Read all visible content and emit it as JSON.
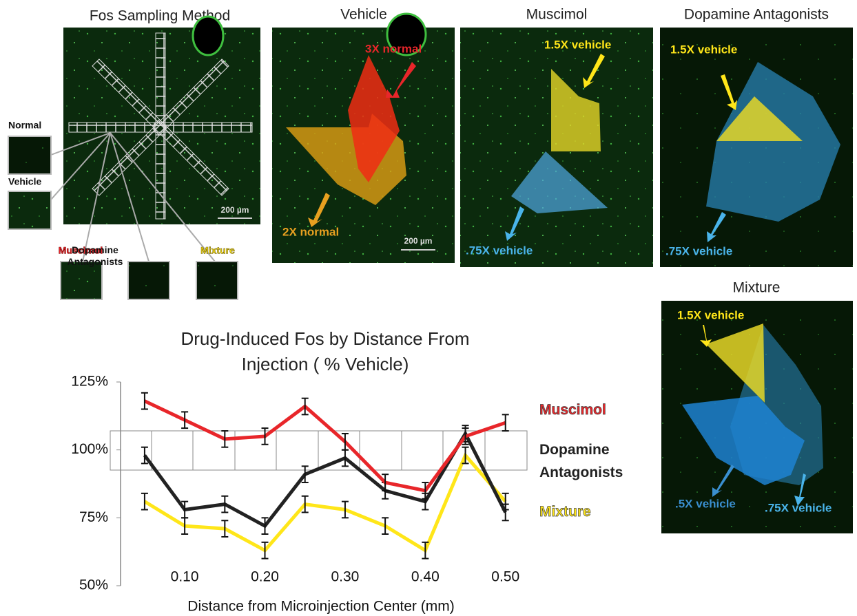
{
  "sampling": {
    "title": "Fos Sampling Method",
    "scale": "200 µm",
    "insets": [
      "Normal",
      "Vehicle",
      "Muscimol",
      "Dopamine Antagonists",
      "Mixture"
    ]
  },
  "vehicle": {
    "title": "Vehicle",
    "labels": [
      "3X normal",
      "2X normal"
    ],
    "scale": "200 µm"
  },
  "muscimol": {
    "title": "Muscimol",
    "labels": [
      "1.5X vehicle",
      ".75X vehicle"
    ]
  },
  "dopamine": {
    "title": "Dopamine Antagonists",
    "labels": [
      "1.5X vehicle",
      ".75X vehicle"
    ]
  },
  "mixture": {
    "title": "Mixture",
    "labels": [
      "1.5X vehicle",
      ".5X vehicle",
      ".75X vehicle"
    ]
  },
  "chart_data": {
    "type": "line",
    "title": "Drug-Induced Fos by Distance From Injection ( % Vehicle)",
    "x_label": "Distance from Microinjection Center (mm)",
    "x": [
      0.05,
      0.1,
      0.15,
      0.2,
      0.25,
      0.3,
      0.35,
      0.4,
      0.45,
      0.5
    ],
    "xlim": [
      0.02,
      0.52
    ],
    "xticks": [
      {
        "value": 0.1,
        "label": "0.10"
      },
      {
        "value": 0.2,
        "label": "0.20"
      },
      {
        "value": 0.3,
        "label": "0.30"
      },
      {
        "value": 0.4,
        "label": "0.40"
      },
      {
        "value": 0.5,
        "label": "0.50"
      }
    ],
    "ylim": [
      50,
      125
    ],
    "yticks": [
      {
        "value": 50,
        "label": "50%"
      },
      {
        "value": 75,
        "label": "75%"
      },
      {
        "value": 100,
        "label": "100%"
      },
      {
        "value": 125,
        "label": "125%"
      }
    ],
    "series": [
      {
        "name": "Muscimol",
        "color": "#e8262a",
        "values": [
          118,
          111,
          104,
          105,
          116,
          103,
          88,
          85,
          105,
          110
        ],
        "errors": [
          3,
          3,
          3,
          3,
          3,
          3,
          3,
          3,
          3,
          3
        ]
      },
      {
        "name": "Dopamine Antagonists",
        "color": "#222222",
        "values": [
          98,
          78,
          80,
          72,
          91,
          97,
          85,
          81,
          106,
          77
        ],
        "errors": [
          3,
          3,
          3,
          3,
          3,
          3,
          3,
          3,
          3,
          3
        ]
      },
      {
        "name": "Mixture",
        "color": "#ffe619",
        "values": [
          81,
          72,
          71,
          63,
          80,
          78,
          72,
          63,
          98,
          81
        ],
        "errors": [
          3,
          3,
          3,
          3,
          3,
          3,
          3,
          3,
          3,
          3
        ]
      }
    ]
  }
}
